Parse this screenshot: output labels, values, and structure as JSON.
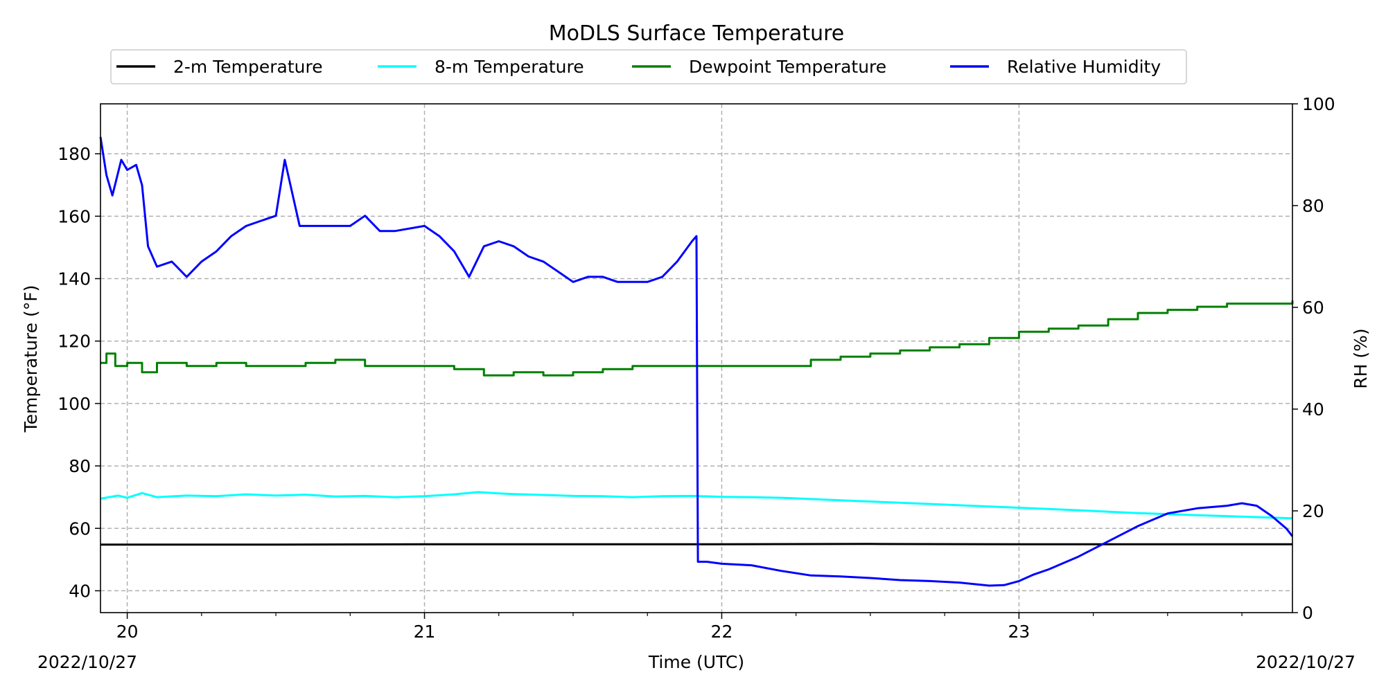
{
  "chart_data": {
    "type": "line",
    "title": "MoDLS Surface Temperature",
    "xlabel": "Time (UTC)",
    "ylabel": "Temperature ($^\\circ$F)",
    "ylabel_display": "Temperature (°F)",
    "y2label": "RH (%)",
    "x_unit": "day of month (UTC), October 2022",
    "xlim": [
      19.91,
      23.92
    ],
    "ylim": [
      33,
      196
    ],
    "y2lim": [
      0,
      100
    ],
    "x_ticks": [
      20,
      21,
      22,
      23
    ],
    "x_tick_labels": [
      "20",
      "21",
      "22",
      "23"
    ],
    "y_ticks": [
      40,
      60,
      80,
      100,
      120,
      140,
      160,
      180
    ],
    "y_tick_labels": [
      "40",
      "60",
      "80",
      "100",
      "120",
      "140",
      "160",
      "180"
    ],
    "y2_ticks": [
      0,
      20,
      40,
      60,
      80,
      100
    ],
    "y2_tick_labels": [
      "0",
      "20",
      "40",
      "60",
      "80",
      "100"
    ],
    "date_left": "2022/10/27",
    "date_right": "2022/10/27",
    "grid": true,
    "legend_position": "top-center",
    "series": [
      {
        "name": "2-m Temperature",
        "axis": "left",
        "color": "#000000",
        "x": [
          19.91,
          20.5,
          21.0,
          21.5,
          22.0,
          22.5,
          23.0,
          23.5,
          23.92
        ],
        "y": [
          54.8,
          54.8,
          54.9,
          54.9,
          54.9,
          55.0,
          54.9,
          54.9,
          54.9
        ]
      },
      {
        "name": "8-m Temperature",
        "axis": "left",
        "color": "#00ffff",
        "x": [
          19.91,
          19.97,
          20.0,
          20.05,
          20.1,
          20.2,
          20.3,
          20.4,
          20.5,
          20.6,
          20.7,
          20.8,
          20.9,
          21.0,
          21.1,
          21.18,
          21.25,
          21.3,
          21.4,
          21.5,
          21.6,
          21.7,
          21.8,
          21.9,
          22.0,
          22.1,
          22.2,
          22.4,
          22.6,
          22.8,
          23.0,
          23.2,
          23.4,
          23.6,
          23.8,
          23.92
        ],
        "y": [
          69.5,
          70.5,
          69.8,
          71.3,
          70.0,
          70.5,
          70.3,
          70.9,
          70.5,
          70.8,
          70.2,
          70.4,
          70.0,
          70.3,
          70.9,
          71.6,
          71.2,
          71.0,
          70.7,
          70.4,
          70.3,
          70.0,
          70.3,
          70.4,
          70.1,
          70.0,
          69.8,
          69.0,
          68.2,
          67.4,
          66.6,
          65.8,
          64.9,
          64.2,
          63.6,
          63.2
        ]
      },
      {
        "name": "Dewpoint Temperature",
        "axis": "left",
        "color": "#008000",
        "x": [
          19.91,
          19.93,
          19.96,
          20.0,
          20.05,
          20.1,
          20.15,
          20.2,
          20.3,
          20.4,
          20.5,
          20.6,
          20.7,
          20.8,
          20.9,
          21.0,
          21.1,
          21.2,
          21.3,
          21.4,
          21.5,
          21.6,
          21.7,
          21.8,
          21.9,
          22.0,
          22.1,
          22.2,
          22.3,
          22.4,
          22.5,
          22.6,
          22.7,
          22.8,
          22.9,
          23.0,
          23.1,
          23.2,
          23.3,
          23.4,
          23.5,
          23.6,
          23.7,
          23.8,
          23.92
        ],
        "y": [
          113,
          116,
          112,
          113,
          110,
          113,
          113,
          112,
          113,
          112,
          112,
          113,
          114,
          112,
          112,
          112,
          111,
          109,
          110,
          109,
          110,
          111,
          112,
          112,
          112,
          112,
          112,
          112,
          114,
          115,
          116,
          117,
          118,
          119,
          121,
          123,
          124,
          125,
          127,
          129,
          130,
          131,
          132,
          132,
          133
        ]
      },
      {
        "name": "Relative Humidity",
        "axis": "right",
        "color": "#0000ff",
        "x": [
          19.91,
          19.93,
          19.95,
          19.98,
          20.0,
          20.03,
          20.05,
          20.07,
          20.1,
          20.15,
          20.2,
          20.25,
          20.3,
          20.35,
          20.4,
          20.45,
          20.5,
          20.53,
          20.58,
          20.65,
          20.75,
          20.8,
          20.85,
          20.9,
          21.0,
          21.05,
          21.1,
          21.15,
          21.2,
          21.25,
          21.3,
          21.35,
          21.4,
          21.45,
          21.5,
          21.55,
          21.6,
          21.65,
          21.7,
          21.75,
          21.8,
          21.85,
          21.9,
          21.915,
          21.92,
          21.95,
          22.0,
          22.1,
          22.2,
          22.3,
          22.4,
          22.5,
          22.6,
          22.7,
          22.8,
          22.9,
          22.95,
          23.0,
          23.05,
          23.1,
          23.2,
          23.3,
          23.4,
          23.5,
          23.6,
          23.7,
          23.75,
          23.8,
          23.85,
          23.9,
          23.92
        ],
        "y": [
          93.5,
          86,
          82,
          89,
          87,
          88,
          84,
          72,
          68,
          69,
          66,
          69,
          71,
          74,
          76,
          77,
          78,
          89,
          76,
          76,
          76,
          78,
          75,
          75,
          76,
          74,
          71,
          66,
          72,
          73,
          72,
          70,
          69,
          67,
          65,
          66,
          66,
          65,
          65,
          65,
          66,
          69,
          73,
          74,
          10,
          10,
          9.6,
          9.3,
          8.2,
          7.3,
          7.1,
          6.8,
          6.4,
          6.2,
          5.9,
          5.3,
          5.4,
          6.2,
          7.5,
          8.5,
          11,
          14,
          17,
          19.5,
          20.5,
          21,
          21.5,
          21,
          19,
          16.5,
          15
        ]
      }
    ]
  }
}
